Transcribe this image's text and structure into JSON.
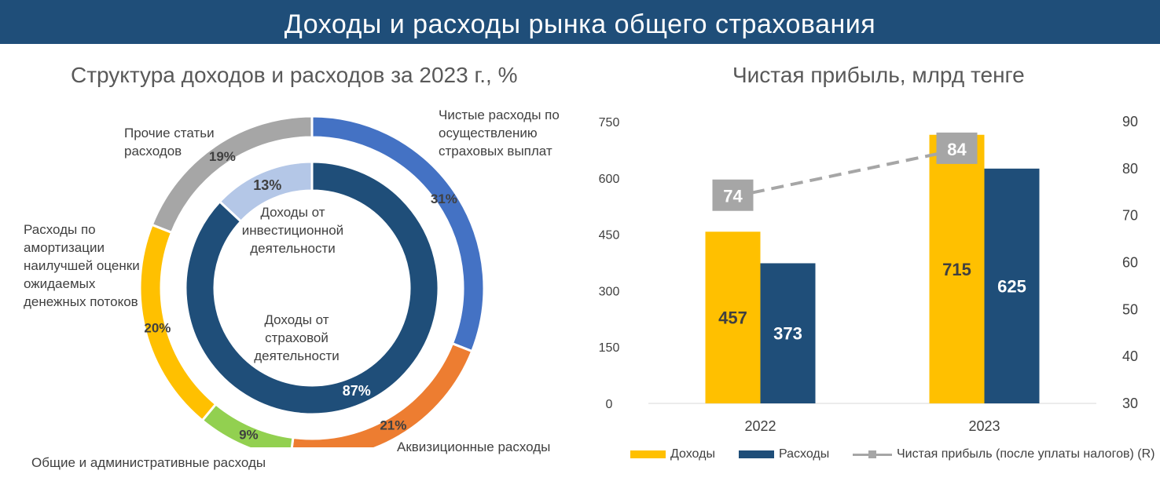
{
  "banner": {
    "title": "Доходы и расходы рынка общего страхования"
  },
  "left_chart": {
    "title": "Структура доходов и расходов за 2023 г., %",
    "outer_labels": {
      "claims": "Чистые расходы по осуществлению страховых выплат",
      "acquisition": "Аквизиционные расходы",
      "admin": "Общие и административные расходы",
      "amortization": "Расходы по амортизации наилучшей оценки ожидаемых денежных потоков",
      "other": "Прочие статьи расходов"
    },
    "inner_labels": {
      "investment": "Доходы от инвестиционной деятельности",
      "insurance": "Доходы от страховой деятельности"
    }
  },
  "right_chart": {
    "title": "Чистая прибыль, млрд тенге",
    "legend": {
      "income": "Доходы",
      "expense": "Расходы",
      "profit": "Чистая прибыль (после уплаты налогов) (R)"
    }
  },
  "chart_data": [
    {
      "type": "pie",
      "title": "Структура доходов и расходов за 2023 г., %",
      "rings": [
        {
          "name": "",
          "slices": [
            {
              "label": "Чистые расходы по осуществлению страховых выплат",
              "value": 31,
              "display": "31%",
              "color": "#4472c4"
            },
            {
              "label": "Аквизиционные расходы",
              "value": 21,
              "display": "21%",
              "color": "#ed7d31"
            },
            {
              "label": "Общие и административные расходы",
              "value": 9,
              "display": "9%",
              "color": "#92d050"
            },
            {
              "label": "Расходы по амортизации наилучшей оценки ожидаемых денежных потоков",
              "value": 20,
              "display": "20%",
              "color": "#ffc000"
            },
            {
              "label": "Прочие статьи расходов",
              "value": 19,
              "display": "19%",
              "color": "#a6a6a6"
            }
          ]
        },
        {
          "name": "",
          "slices": [
            {
              "label": "Доходы от страховой деятельности",
              "value": 87,
              "display": "87%",
              "color": "#1f4e79"
            },
            {
              "label": "Доходы от инвестиционной деятельности",
              "value": 13,
              "display": "13%",
              "color": "#b4c7e7"
            }
          ]
        }
      ]
    },
    {
      "type": "bar",
      "title": "Чистая прибыль, млрд тенге",
      "categories": [
        "2022",
        "2023"
      ],
      "series": [
        {
          "name": "Доходы",
          "values": [
            457,
            715
          ],
          "color": "#ffc000"
        },
        {
          "name": "Расходы",
          "values": [
            373,
            625
          ],
          "color": "#1f4e79"
        }
      ],
      "line_series": {
        "name": "Чистая прибыль (после уплаты налогов) (R)",
        "values": [
          74,
          84
        ],
        "axis": "right",
        "color": "#a6a6a6"
      },
      "ylim": [
        0,
        750
      ],
      "yticks": [
        "0",
        "150",
        "300",
        "450",
        "600",
        "750"
      ],
      "y2lim": [
        30,
        90
      ],
      "y2ticks": [
        "30",
        "40",
        "50",
        "60",
        "70",
        "80",
        "90"
      ],
      "legend_position": "bottom",
      "grid": false
    }
  ]
}
